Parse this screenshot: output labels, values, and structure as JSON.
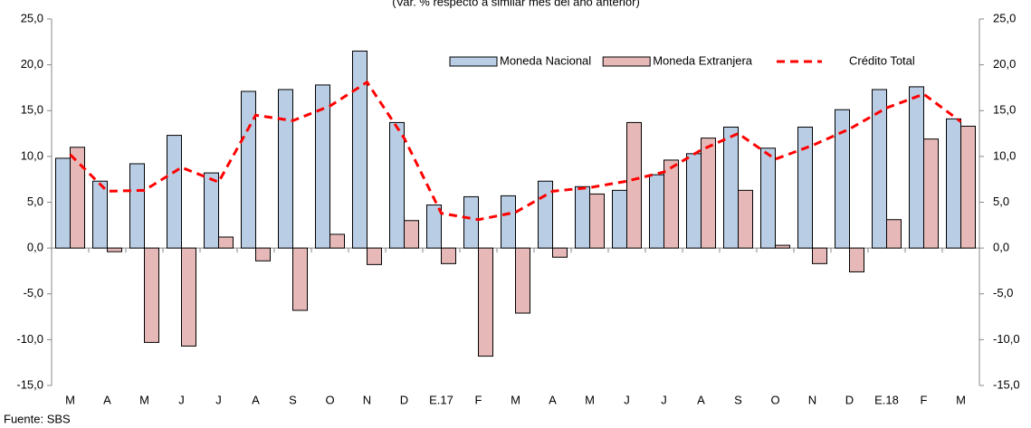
{
  "chart_data": {
    "type": "bar",
    "subtitle": "(Var. % respecto a similar mes del año anterior)",
    "source": "Fuente: SBS",
    "categories": [
      "M",
      "A",
      "M",
      "J",
      "J",
      "A",
      "S",
      "O",
      "N",
      "D",
      "E.17",
      "F",
      "M",
      "A",
      "M",
      "J",
      "J",
      "A",
      "S",
      "O",
      "N",
      "D",
      "E.18",
      "F",
      "M"
    ],
    "series": [
      {
        "name": "Moneda Nacional",
        "color": "#b9cde5",
        "type": "bar",
        "values": [
          9.8,
          7.3,
          9.2,
          12.3,
          8.2,
          17.1,
          17.3,
          17.8,
          21.5,
          13.7,
          4.7,
          5.6,
          5.7,
          7.3,
          6.7,
          6.3,
          8.0,
          10.3,
          13.2,
          10.9,
          13.2,
          15.1,
          17.3,
          17.6,
          14.1
        ]
      },
      {
        "name": "Moneda Extranjera",
        "color": "#e6b9b8",
        "type": "bar",
        "values": [
          11.0,
          -0.4,
          -10.3,
          -10.7,
          1.2,
          -1.4,
          -6.8,
          1.5,
          -1.8,
          3.0,
          -1.7,
          -11.8,
          -7.1,
          -1.0,
          5.9,
          13.7,
          9.6,
          12.0,
          6.3,
          0.3,
          -1.7,
          -2.6,
          3.1,
          11.9,
          13.3
        ]
      },
      {
        "name": "Crédito Total",
        "color": "#ff0000",
        "type": "line",
        "values": [
          10.2,
          6.2,
          6.3,
          8.8,
          7.2,
          14.5,
          13.9,
          15.5,
          18.1,
          12.0,
          3.8,
          3.1,
          3.9,
          6.2,
          6.6,
          7.3,
          8.3,
          10.7,
          12.5,
          9.7,
          11.2,
          13.0,
          15.3,
          16.8,
          13.8
        ]
      }
    ],
    "ylim": [
      -15,
      25
    ],
    "yticks": [
      {
        "value": -15,
        "label": "-15,0"
      },
      {
        "value": -10,
        "label": "-10,0"
      },
      {
        "value": -5,
        "label": "-5,0"
      },
      {
        "value": 0,
        "label": "0,0"
      },
      {
        "value": 5,
        "label": "5,0"
      },
      {
        "value": 10,
        "label": "10,0"
      },
      {
        "value": 15,
        "label": "15,0"
      },
      {
        "value": 20,
        "label": "20,0"
      },
      {
        "value": 25,
        "label": "25,0"
      }
    ],
    "y2lim": [
      -15,
      25
    ],
    "y2ticks": [
      {
        "value": -15,
        "label": "-15,0"
      },
      {
        "value": -10,
        "label": "-10,0"
      },
      {
        "value": -5,
        "label": "-5,0"
      },
      {
        "value": 0,
        "label": "0,0"
      },
      {
        "value": 5,
        "label": "5,0"
      },
      {
        "value": 10,
        "label": "10,0"
      },
      {
        "value": 15,
        "label": "15,0"
      },
      {
        "value": 20,
        "label": "20,0"
      },
      {
        "value": 25,
        "label": "25,0"
      }
    ],
    "grid": false,
    "legend": "top-right"
  }
}
